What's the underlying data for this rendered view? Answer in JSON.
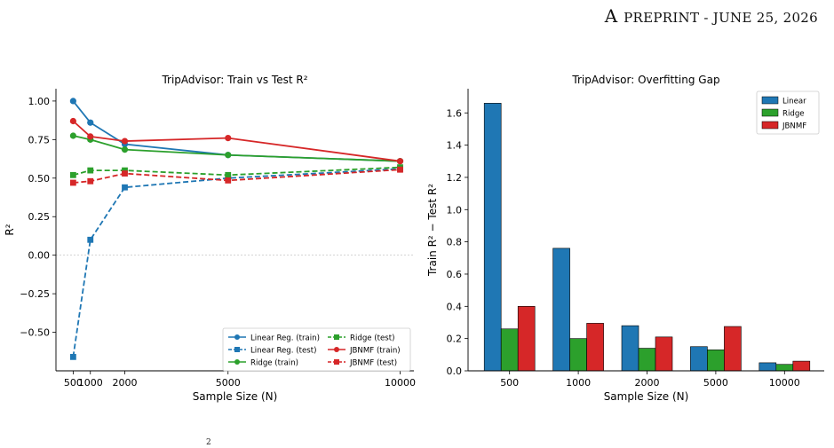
{
  "header": {
    "letter_a": "A",
    "rest": "preprint - June 25, 2026"
  },
  "footer": {
    "mark": "2"
  },
  "chart_data": [
    {
      "type": "line",
      "title": "TripAdvisor: Train vs Test R²",
      "xlabel": "Sample Size (N)",
      "ylabel": "R²",
      "x": [
        500,
        1000,
        2000,
        5000,
        10000
      ],
      "xticks": [
        "500",
        "1000",
        "2000",
        "5000",
        "10000"
      ],
      "xlim": [
        0,
        10400
      ],
      "ylim": [
        -0.75,
        1.08
      ],
      "yticks": [
        "1.00",
        "0.75",
        "0.50",
        "0.25",
        "0.00",
        "−0.25",
        "−0.50"
      ],
      "ytick_values": [
        1.0,
        0.75,
        0.5,
        0.25,
        0.0,
        -0.25,
        -0.5
      ],
      "zero_line": true,
      "legend_position": "lower-right",
      "legend_columns": 2,
      "series": [
        {
          "name": "Linear Reg. (train)",
          "color": "#1f77b4",
          "style": "solid",
          "marker": "circle",
          "values": [
            1.0,
            0.86,
            0.72,
            0.65,
            0.61
          ]
        },
        {
          "name": "Linear Reg. (test)",
          "color": "#1f77b4",
          "style": "dashed",
          "marker": "square",
          "values": [
            -0.66,
            0.1,
            0.44,
            0.5,
            0.56
          ]
        },
        {
          "name": "Ridge (train)",
          "color": "#2ca02c",
          "style": "solid",
          "marker": "circle",
          "values": [
            0.775,
            0.75,
            0.685,
            0.65,
            0.61
          ]
        },
        {
          "name": "Ridge (test)",
          "color": "#2ca02c",
          "style": "dashed",
          "marker": "square",
          "values": [
            0.52,
            0.55,
            0.55,
            0.52,
            0.57
          ]
        },
        {
          "name": "JBNMF (train)",
          "color": "#d62728",
          "style": "solid",
          "marker": "circle",
          "values": [
            0.87,
            0.77,
            0.74,
            0.76,
            0.61
          ]
        },
        {
          "name": "JBNMF (test)",
          "color": "#d62728",
          "style": "dashed",
          "marker": "square",
          "values": [
            0.47,
            0.48,
            0.53,
            0.485,
            0.555
          ]
        }
      ]
    },
    {
      "type": "bar",
      "title": "TripAdvisor: Overfitting Gap",
      "xlabel": "Sample Size (N)",
      "ylabel": "Train R² − Test R²",
      "categories": [
        "500",
        "1000",
        "2000",
        "5000",
        "10000"
      ],
      "ylim": [
        0,
        1.75
      ],
      "yticks": [
        "0.0",
        "0.2",
        "0.4",
        "0.6",
        "0.8",
        "1.0",
        "1.2",
        "1.4",
        "1.6"
      ],
      "ytick_values": [
        0,
        0.2,
        0.4,
        0.6,
        0.8,
        1.0,
        1.2,
        1.4,
        1.6
      ],
      "legend_position": "top-right",
      "series": [
        {
          "name": "Linear",
          "color": "#1f77b4",
          "values": [
            1.66,
            0.76,
            0.28,
            0.15,
            0.05
          ]
        },
        {
          "name": "Ridge",
          "color": "#2ca02c",
          "values": [
            0.26,
            0.2,
            0.14,
            0.13,
            0.04
          ]
        },
        {
          "name": "JBNMF",
          "color": "#d62728",
          "values": [
            0.4,
            0.295,
            0.21,
            0.275,
            0.06
          ]
        }
      ]
    }
  ]
}
